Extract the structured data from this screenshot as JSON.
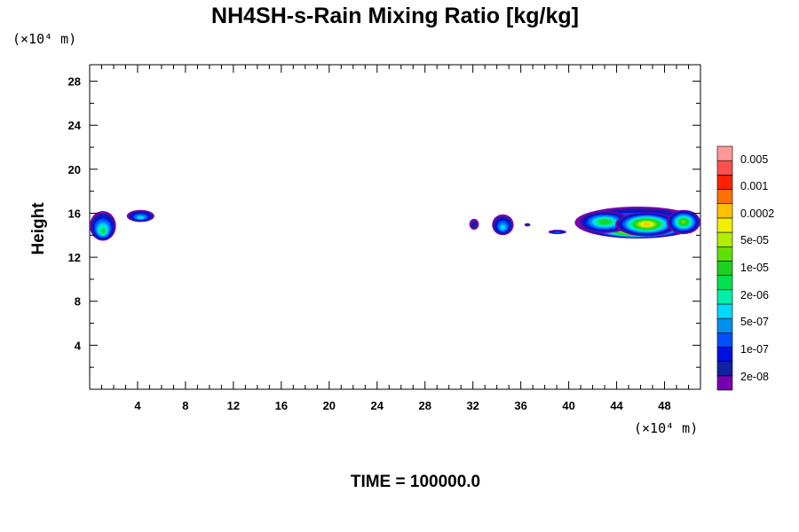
{
  "chart_data": {
    "type": "heatmap",
    "title": "NH4SH-s-Rain Mixing Ratio [kg/kg]",
    "ylabel": "Height",
    "x_unit_label": "(×10⁴ m)",
    "y_unit_label": "(×10⁴ m)",
    "footer": "TIME = 100000.0",
    "xlim": [
      0,
      51
    ],
    "ylim": [
      0,
      29.5
    ],
    "x_ticks": [
      4,
      8,
      12,
      16,
      20,
      24,
      28,
      32,
      36,
      40,
      44,
      48
    ],
    "y_ticks": [
      4,
      8,
      12,
      16,
      20,
      24,
      28
    ],
    "colorbar": {
      "labels": [
        "0.005",
        "0.001",
        "0.0002",
        "5e-05",
        "1e-05",
        "2e-06",
        "5e-07",
        "1e-07",
        "2e-08"
      ],
      "colors_bottom_to_top": [
        "#7800b0",
        "#1020a0",
        "#0010e0",
        "#0050ff",
        "#0090f0",
        "#00d8ff",
        "#00f0a8",
        "#00e050",
        "#20d020",
        "#60e000",
        "#b0f000",
        "#f0f000",
        "#ffc000",
        "#ff7000",
        "#ff2000",
        "#ff5050",
        "#ff9898"
      ]
    },
    "regions": [
      {
        "name": "cloud-left-edge",
        "x": [
          0.0,
          2.2
        ],
        "y": [
          13.5,
          16.2
        ],
        "peak": "2e-06"
      },
      {
        "name": "cloud-near-4",
        "x": [
          3.1,
          5.4
        ],
        "y": [
          15.2,
          16.3
        ],
        "peak": "5e-07"
      },
      {
        "name": "cloud-near-32",
        "x": [
          31.7,
          32.5
        ],
        "y": [
          14.5,
          15.5
        ],
        "peak": "2e-08"
      },
      {
        "name": "cloud-near-34",
        "x": [
          33.6,
          35.4
        ],
        "y": [
          14.0,
          15.9
        ],
        "peak": "5e-07"
      },
      {
        "name": "cloud-near-36",
        "x": [
          36.3,
          36.8
        ],
        "y": [
          14.8,
          15.1
        ],
        "peak": "2e-08"
      },
      {
        "name": "cloud-near-39",
        "x": [
          38.3,
          39.8
        ],
        "y": [
          14.1,
          14.5
        ],
        "peak": "1e-07"
      },
      {
        "name": "cloud-main",
        "x": [
          40.5,
          51.0
        ],
        "y": [
          13.7,
          16.6
        ],
        "peak": "0.0002"
      }
    ]
  }
}
